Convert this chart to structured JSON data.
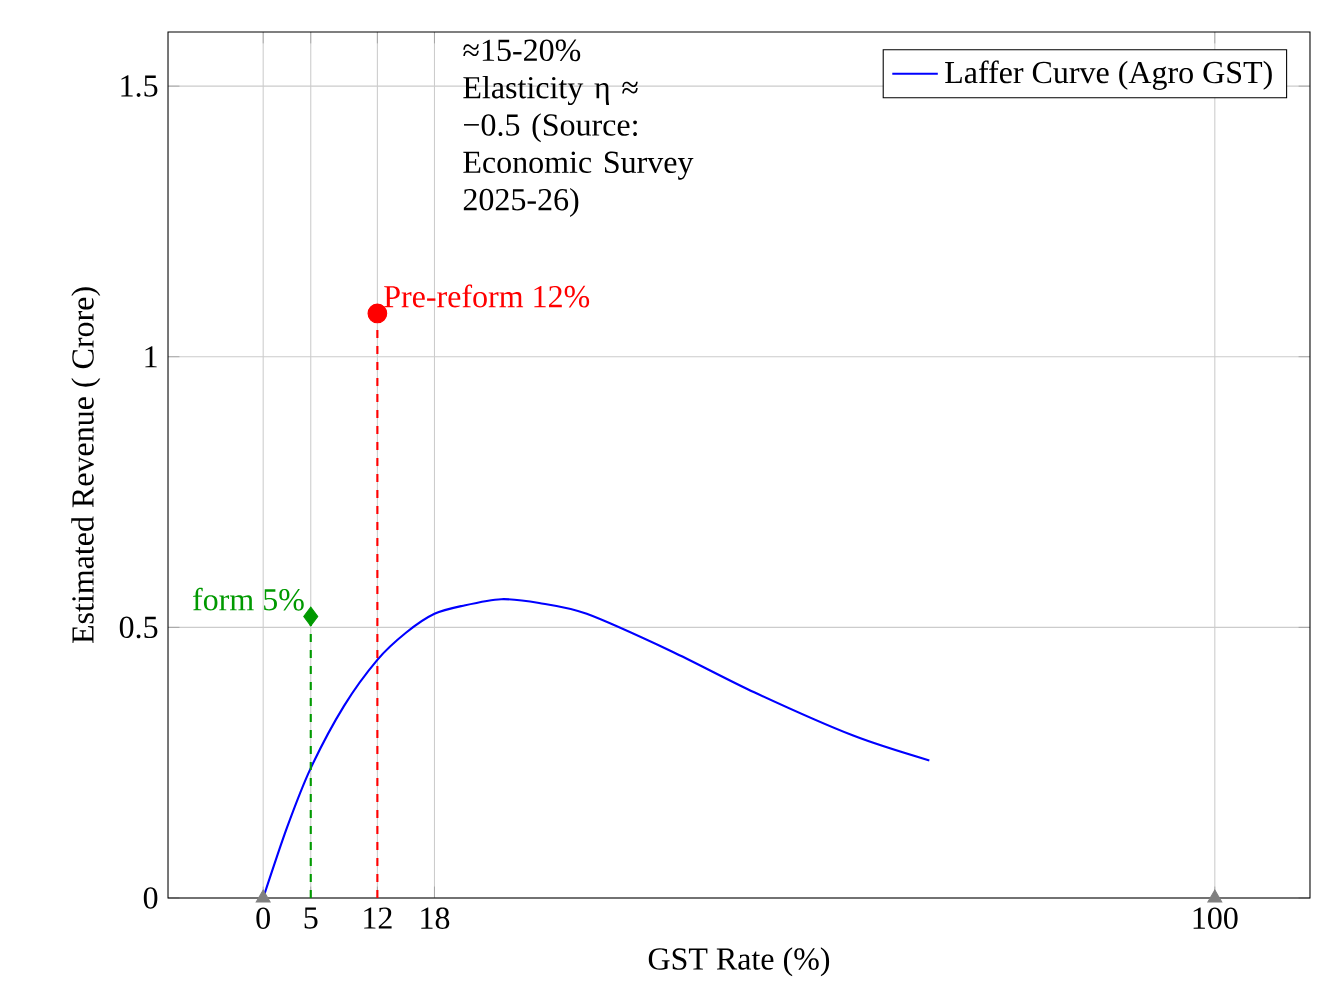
{
  "chart_data": {
    "type": "line",
    "xlabel": "GST Rate (%)",
    "ylabel": "Estimated Revenue ( Crore)",
    "annotations": [
      "≈15-20% Elasticity η ≈ −0.5 (Source: Economic Survey 2025-26)"
    ],
    "xlim": [
      -10,
      110
    ],
    "ylim": [
      0,
      1.6
    ],
    "xticks": [
      0,
      5,
      12,
      18,
      100
    ],
    "yticks": [
      0,
      0.5,
      1,
      1.5
    ],
    "grid": true,
    "legend": "top right",
    "series": [
      {
        "name": "Laffer Curve (Agro GST)",
        "color": "#0000ff",
        "marker": "none",
        "line_style": "solid",
        "x": [
          0,
          2.5,
          5,
          8.5,
          12,
          15,
          18,
          21,
          25,
          29,
          34,
          43,
          51.6,
          62,
          70
        ],
        "values": [
          0,
          0.13,
          0.24,
          0.355,
          0.44,
          0.49,
          0.525,
          0.54,
          0.552,
          0.545,
          0.525,
          0.455,
          0.38,
          0.3,
          0.254
        ]
      },
      {
        "name": "form 5%",
        "type": "lollipop",
        "color": "#009900",
        "marker": "diamond",
        "line_style": "dashed",
        "x": [
          5
        ],
        "values": [
          0.52
        ]
      },
      {
        "name": "Pre-reform 12%",
        "type": "lollipop",
        "color": "#ff0000",
        "marker": "circle",
        "line_style": "dashed",
        "x": [
          12
        ],
        "values": [
          1.08
        ]
      },
      {
        "type": "scatter",
        "color": "#808080",
        "marker": "triangle",
        "x": [
          0,
          100
        ],
        "values": [
          0,
          0
        ]
      }
    ]
  }
}
